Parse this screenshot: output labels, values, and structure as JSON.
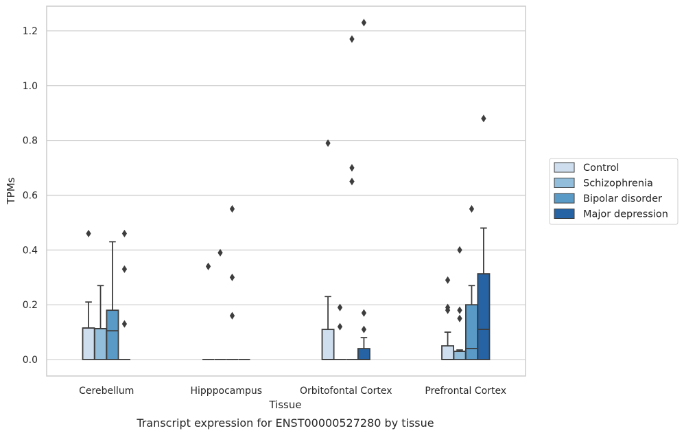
{
  "chart_data": {
    "type": "box",
    "caption": "Transcript expression for ENST00000527280 by tissue",
    "xlabel": "Tissue",
    "ylabel": "TPMs",
    "ylim": [
      -0.06,
      1.29
    ],
    "yticks": [
      0.0,
      0.2,
      0.4,
      0.6,
      0.8,
      1.0,
      1.2
    ],
    "ytick_labels": [
      "0.0",
      "0.2",
      "0.4",
      "0.6",
      "0.8",
      "1.0",
      "1.2"
    ],
    "grid": "horizontal",
    "legend_position": "right",
    "categories": [
      "Cerebellum",
      "Hipppocampus",
      "Orbitofontal Cortex",
      "Prefrontal Cortex"
    ],
    "series": [
      {
        "name": "Control",
        "color": "#cfdeee",
        "boxes": [
          {
            "q1": 0.0,
            "median": 0.115,
            "q3": 0.115,
            "whisker_low": 0.0,
            "whisker_high": 0.21,
            "outliers": [
              0.46
            ]
          },
          {
            "q1": 0.0,
            "median": 0.0,
            "q3": 0.0,
            "whisker_low": 0.0,
            "whisker_high": 0.0,
            "outliers": [
              0.34
            ]
          },
          {
            "q1": 0.0,
            "median": 0.0,
            "q3": 0.11,
            "whisker_low": 0.0,
            "whisker_high": 0.23,
            "outliers": [
              0.79
            ]
          },
          {
            "q1": 0.0,
            "median": 0.0,
            "q3": 0.05,
            "whisker_low": 0.0,
            "whisker_high": 0.1,
            "outliers": [
              0.18,
              0.19,
              0.29
            ]
          }
        ]
      },
      {
        "name": "Schizophrenia",
        "color": "#93bedb",
        "boxes": [
          {
            "q1": 0.0,
            "median": 0.113,
            "q3": 0.113,
            "whisker_low": 0.0,
            "whisker_high": 0.27,
            "outliers": []
          },
          {
            "q1": 0.0,
            "median": 0.0,
            "q3": 0.0,
            "whisker_low": 0.0,
            "whisker_high": 0.0,
            "outliers": [
              0.39
            ]
          },
          {
            "q1": 0.0,
            "median": 0.0,
            "q3": 0.0,
            "whisker_low": 0.0,
            "whisker_high": 0.0,
            "outliers": [
              0.12,
              0.19
            ]
          },
          {
            "q1": 0.0,
            "median": 0.03,
            "q3": 0.03,
            "whisker_low": 0.0,
            "whisker_high": 0.035,
            "outliers": [
              0.15,
              0.18,
              0.4
            ]
          }
        ]
      },
      {
        "name": "Bipolar disorder",
        "color": "#5a9ac7",
        "boxes": [
          {
            "q1": 0.0,
            "median": 0.105,
            "q3": 0.18,
            "whisker_low": 0.0,
            "whisker_high": 0.43,
            "outliers": []
          },
          {
            "q1": 0.0,
            "median": 0.0,
            "q3": 0.0,
            "whisker_low": 0.0,
            "whisker_high": 0.0,
            "outliers": [
              0.16,
              0.3,
              0.55
            ]
          },
          {
            "q1": 0.0,
            "median": 0.0,
            "q3": 0.0,
            "whisker_low": 0.0,
            "whisker_high": 0.0,
            "outliers": [
              0.65,
              0.7,
              1.17
            ]
          },
          {
            "q1": 0.0,
            "median": 0.04,
            "q3": 0.2,
            "whisker_low": 0.0,
            "whisker_high": 0.27,
            "outliers": [
              0.55
            ]
          }
        ]
      },
      {
        "name": "Major depression",
        "color": "#2563a4",
        "boxes": [
          {
            "q1": 0.0,
            "median": 0.0,
            "q3": 0.0,
            "whisker_low": 0.0,
            "whisker_high": 0.0,
            "outliers": [
              0.13,
              0.33,
              0.46
            ]
          },
          {
            "q1": 0.0,
            "median": 0.0,
            "q3": 0.0,
            "whisker_low": 0.0,
            "whisker_high": 0.0,
            "outliers": []
          },
          {
            "q1": 0.0,
            "median": 0.0,
            "q3": 0.04,
            "whisker_low": 0.0,
            "whisker_high": 0.08,
            "outliers": [
              0.11,
              0.17,
              1.23
            ]
          },
          {
            "q1": 0.0,
            "median": 0.11,
            "q3": 0.313,
            "whisker_low": 0.0,
            "whisker_high": 0.48,
            "outliers": [
              0.88
            ]
          }
        ]
      }
    ]
  }
}
